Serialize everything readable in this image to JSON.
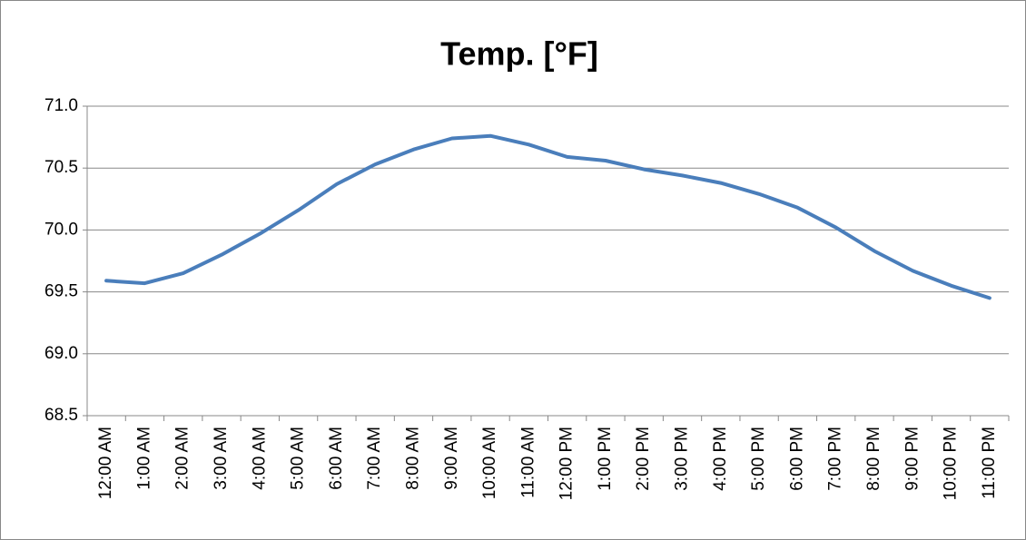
{
  "chart_data": {
    "type": "line",
    "title": "Temp. [°F]",
    "categories": [
      "12:00 AM",
      "1:00 AM",
      "2:00 AM",
      "3:00 AM",
      "4:00 AM",
      "5:00 AM",
      "6:00 AM",
      "7:00 AM",
      "8:00 AM",
      "9:00 AM",
      "10:00 AM",
      "11:00 AM",
      "12:00 PM",
      "1:00 PM",
      "2:00 PM",
      "3:00 PM",
      "4:00 PM",
      "5:00 PM",
      "6:00 PM",
      "7:00 PM",
      "8:00 PM",
      "9:00 PM",
      "10:00 PM",
      "11:00 PM"
    ],
    "values": [
      69.59,
      69.57,
      69.65,
      69.8,
      69.97,
      70.16,
      70.37,
      70.53,
      70.65,
      70.74,
      70.76,
      70.69,
      70.59,
      70.56,
      70.49,
      70.44,
      70.38,
      70.29,
      70.18,
      70.02,
      69.83,
      69.67,
      69.55,
      69.45
    ],
    "color": "#4a7ebb",
    "ylim": [
      68.5,
      71.0
    ],
    "yticks": [
      68.5,
      {
        "value": 69.0,
        "label": "69.0"
      },
      69.5,
      {
        "value": 70.0,
        "label": "70.0"
      },
      70.5,
      {
        "value": 71.0,
        "label": "71.0"
      }
    ],
    "grid": true
  }
}
